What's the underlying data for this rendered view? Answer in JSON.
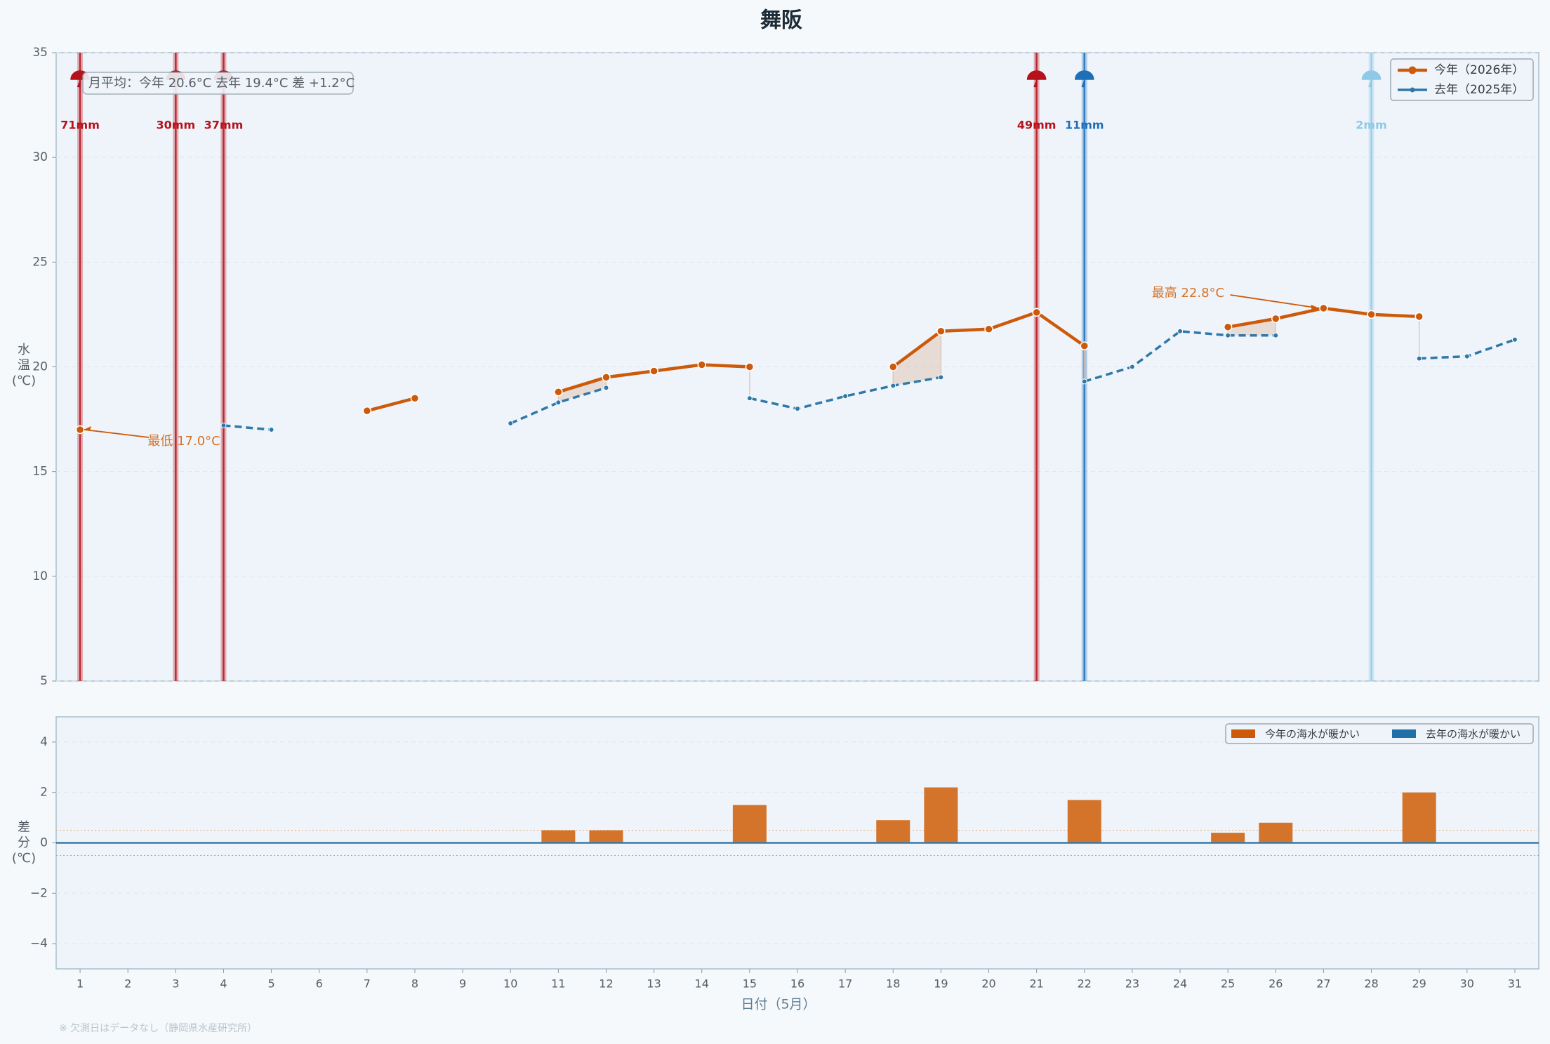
{
  "chart_data": [
    {
      "type": "line",
      "title": "舞阪",
      "ylabel": "水\n温\n(℃)",
      "x": [
        1,
        2,
        3,
        4,
        5,
        6,
        7,
        8,
        9,
        10,
        11,
        12,
        13,
        14,
        15,
        16,
        17,
        18,
        19,
        20,
        21,
        22,
        23,
        24,
        25,
        26,
        27,
        28,
        29,
        30,
        31
      ],
      "xlim": [
        0.5,
        31.5
      ],
      "ylim": [
        5,
        35
      ],
      "yticks": [
        5,
        10,
        15,
        20,
        25,
        30,
        35
      ],
      "grid": true,
      "legend": "upper right",
      "series": [
        {
          "name": "今年（2026年）",
          "color": "#cc5a0a",
          "values": [
            17.0,
            null,
            null,
            null,
            null,
            null,
            17.9,
            18.5,
            null,
            null,
            18.8,
            19.5,
            19.8,
            20.1,
            20.0,
            null,
            null,
            20.0,
            21.7,
            21.8,
            22.6,
            21.0,
            null,
            null,
            21.9,
            22.3,
            22.8,
            22.5,
            22.4,
            null,
            null
          ]
        },
        {
          "name": "去年（2025年）",
          "color": "#2f78a8",
          "values": [
            null,
            null,
            null,
            17.2,
            17.0,
            null,
            null,
            null,
            null,
            17.3,
            18.3,
            19.0,
            null,
            null,
            18.5,
            18.0,
            18.6,
            19.1,
            19.5,
            null,
            null,
            19.3,
            20.0,
            21.7,
            21.5,
            21.5,
            null,
            null,
            20.4,
            20.5,
            21.3
          ]
        }
      ],
      "rain": {
        "days": [
          1,
          3,
          4,
          21,
          22,
          28
        ],
        "values": [
          71,
          30,
          37,
          49,
          11,
          2
        ],
        "value_labels": [
          "71mm",
          "30mm",
          "37mm",
          "49mm",
          "11mm",
          "2mm"
        ],
        "colors": [
          "#b5121b",
          "#b5121b",
          "#b5121b",
          "#b5121b",
          "#1f6fb8",
          "#8ecae6"
        ]
      },
      "annotations": [
        {
          "text": "最低 17.0°C",
          "x": 1,
          "y": 17.0
        },
        {
          "text": "最高 22.8°C",
          "x": 27,
          "y": 22.8
        }
      ],
      "stats_text": "月平均：今年 20.6°C  去年 19.4°C  差 +1.2°C"
    },
    {
      "type": "bar",
      "ylabel": "差\n分\n(℃)",
      "xlabel": "日付（5月）",
      "x": [
        1,
        2,
        3,
        4,
        5,
        6,
        7,
        8,
        9,
        10,
        11,
        12,
        13,
        14,
        15,
        16,
        17,
        18,
        19,
        20,
        21,
        22,
        23,
        24,
        25,
        26,
        27,
        28,
        29,
        30,
        31
      ],
      "xticks": [
        1,
        2,
        3,
        4,
        5,
        6,
        7,
        8,
        9,
        10,
        11,
        12,
        13,
        14,
        15,
        16,
        17,
        18,
        19,
        20,
        21,
        22,
        23,
        24,
        25,
        26,
        27,
        28,
        29,
        30,
        31
      ],
      "xlim": [
        0.5,
        31.5
      ],
      "ylim": [
        -5,
        5
      ],
      "yticks": [
        {
          "value": -4,
          "label": "−4"
        },
        {
          "value": -2,
          "label": "−2"
        },
        0,
        2,
        4
      ],
      "values": [
        null,
        null,
        null,
        null,
        null,
        null,
        null,
        null,
        null,
        null,
        0.5,
        0.5,
        null,
        null,
        1.5,
        null,
        null,
        0.9,
        2.2,
        null,
        null,
        1.7,
        null,
        null,
        0.4,
        0.8,
        null,
        null,
        2.0,
        null,
        null
      ],
      "color": "#d4742a",
      "thresholds": [
        0.5,
        -0.5
      ],
      "grid": true,
      "legend": "upper right",
      "legend_entries": [
        {
          "name": "今年の海水が暖かい",
          "color": "#cc5a0a"
        },
        {
          "name": "去年の海水が暖かい",
          "color": "#1f6fa8"
        }
      ]
    }
  ],
  "footer": "※ 欠測日はデータなし（静岡県水産研究所）"
}
